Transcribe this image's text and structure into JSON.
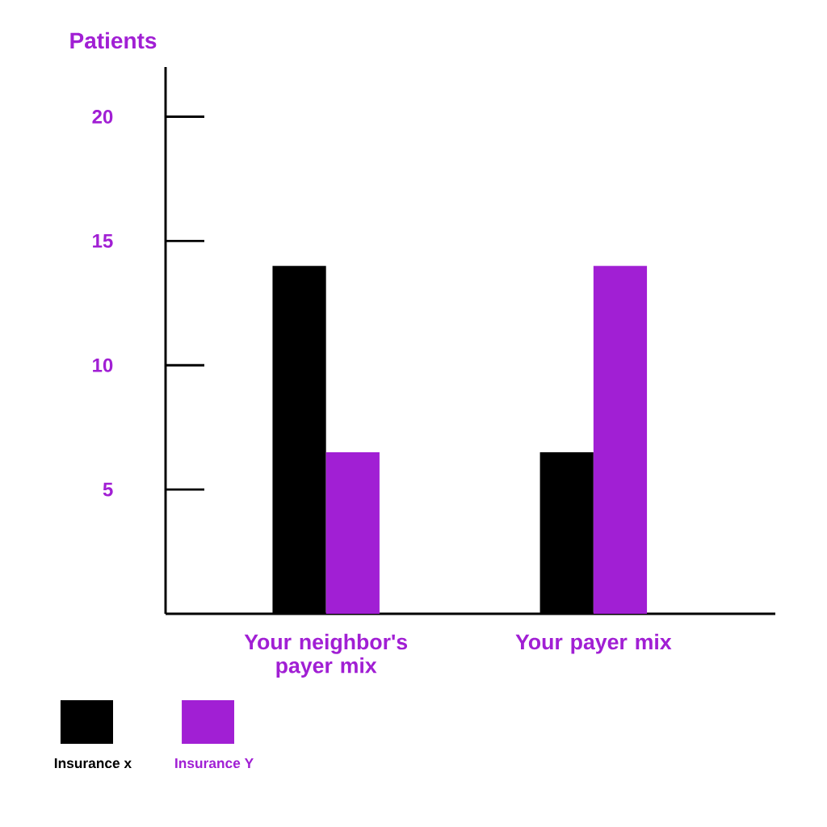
{
  "chart_data": {
    "type": "bar",
    "ylabel": "Patients",
    "categories": [
      "Your neighbor's payer mix",
      "Your payer mix"
    ],
    "series": [
      {
        "name": "Insurance x",
        "color": "#000000",
        "values": [
          14,
          6.5
        ]
      },
      {
        "name": "Insurance Y",
        "color": "#a11fd4",
        "values": [
          6.5,
          14
        ]
      }
    ],
    "ylim": [
      0,
      22
    ],
    "yticks": [
      5,
      10,
      15,
      20
    ],
    "grid": false,
    "legend": "bottom left"
  }
}
